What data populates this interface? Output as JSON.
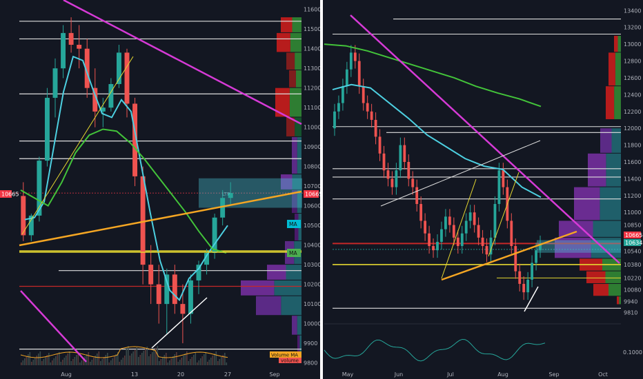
{
  "colors": {
    "background": "#131722",
    "panel_border": "#ffffff",
    "up_candle": "#26a69a",
    "down_candle": "#ef5350",
    "ma_cyan": "#4dd0e1",
    "ma_green": "#43c43a",
    "trend_magenta": "#d63ad6",
    "trend_orange": "#f5a623",
    "support_yellow": "#e6d830",
    "resistance_red": "#c62828",
    "price_label_red": "#f23645",
    "ma_label_cyan": "#00bcd4",
    "ma_label_green": "#4caf50"
  },
  "chart_data": [
    {
      "type": "candlestick",
      "panel": "left",
      "title": "",
      "ylim": [
        9760,
        11620
      ],
      "y_ticks": [
        "11600",
        "11500",
        "11400",
        "11300",
        "11200",
        "11100",
        "11000",
        "10900",
        "10800",
        "10700",
        "10600",
        "10500",
        "10400",
        "10300",
        "10200",
        "10100",
        "10000",
        "9900",
        "9800"
      ],
      "x_ticks": [
        "Aug",
        "13",
        "20",
        "27",
        "Sep"
      ],
      "last_price_label": "10665",
      "ma_badges": [
        "MA",
        "MA"
      ],
      "volume_legend": [
        "Volume MA",
        "volume"
      ],
      "horizontal_levels": [
        11540,
        11450,
        11170,
        10930,
        10840,
        10370,
        10270,
        10190,
        9870
      ],
      "moving_averages": [
        {
          "color": "cyan",
          "values": [
            10530,
            10540,
            10620,
            10900,
            11180,
            11360,
            11340,
            11200,
            11070,
            11050,
            11140,
            11080,
            10820,
            10560,
            10320,
            10170,
            10120,
            10230,
            10280,
            10360,
            10430,
            10500
          ]
        },
        {
          "color": "green",
          "values": [
            10680,
            10640,
            10600,
            10720,
            10870,
            10960,
            10990,
            10980,
            10920,
            10840,
            10750,
            10660,
            10570,
            10470,
            10380,
            10360
          ]
        }
      ],
      "candles": [
        {
          "open": 10650,
          "high": 10720,
          "low": 10420,
          "close": 10450
        },
        {
          "open": 10450,
          "high": 10560,
          "low": 10420,
          "close": 10550
        },
        {
          "open": 10550,
          "high": 10850,
          "low": 10520,
          "close": 10830
        },
        {
          "open": 10830,
          "high": 11200,
          "low": 10800,
          "close": 11150
        },
        {
          "open": 11150,
          "high": 11350,
          "low": 11050,
          "close": 11300
        },
        {
          "open": 11300,
          "high": 11520,
          "low": 11250,
          "close": 11480
        },
        {
          "open": 11480,
          "high": 11560,
          "low": 11380,
          "close": 11420
        },
        {
          "open": 11420,
          "high": 11520,
          "low": 11300,
          "close": 11400
        },
        {
          "open": 11400,
          "high": 11450,
          "low": 11150,
          "close": 11200
        },
        {
          "open": 11200,
          "high": 11300,
          "low": 11000,
          "close": 11080
        },
        {
          "open": 11080,
          "high": 11150,
          "low": 11000,
          "close": 11100
        },
        {
          "open": 11100,
          "high": 11250,
          "low": 11080,
          "close": 11220
        },
        {
          "open": 11220,
          "high": 11420,
          "low": 11200,
          "close": 11380
        },
        {
          "open": 11380,
          "high": 11400,
          "low": 11050,
          "close": 11120
        },
        {
          "open": 11120,
          "high": 11150,
          "low": 10700,
          "close": 10750
        },
        {
          "open": 10750,
          "high": 10800,
          "low": 10200,
          "close": 10300
        },
        {
          "open": 10300,
          "high": 10400,
          "low": 10100,
          "close": 10200
        },
        {
          "open": 10200,
          "high": 10300,
          "low": 10000,
          "close": 10100
        },
        {
          "open": 10100,
          "high": 10280,
          "low": 9950,
          "close": 10250
        },
        {
          "open": 10250,
          "high": 10300,
          "low": 10050,
          "close": 10100
        },
        {
          "open": 10100,
          "high": 10200,
          "low": 9900,
          "close": 10050
        },
        {
          "open": 10050,
          "high": 10250,
          "low": 10000,
          "close": 10220
        },
        {
          "open": 10220,
          "high": 10320,
          "low": 10150,
          "close": 10300
        },
        {
          "open": 10300,
          "high": 10380,
          "low": 10250,
          "close": 10360
        },
        {
          "open": 10360,
          "high": 10560,
          "low": 10330,
          "close": 10540
        },
        {
          "open": 10540,
          "high": 10680,
          "low": 10500,
          "close": 10640
        },
        {
          "open": 10640,
          "high": 10720,
          "low": 10600,
          "close": 10665
        }
      ]
    },
    {
      "type": "candlestick",
      "panel": "right",
      "title": "",
      "ylim": [
        9740,
        13460
      ],
      "y_ticks": [
        "13400",
        "13200",
        "13000",
        "12800",
        "12600",
        "12400",
        "12200",
        "12000",
        "11800",
        "11600",
        "11400",
        "11200",
        "11000",
        "10850",
        "10665",
        "10634",
        "10540",
        "10380",
        "10220",
        "10080",
        "9940",
        "9810"
      ],
      "x_ticks": [
        "May",
        "Jun",
        "Jul",
        "Aug",
        "Sep",
        "Oct"
      ],
      "last_price_label": "10665",
      "last_price_label_2": "10634",
      "oscillator_tick": "0.1000",
      "horizontal_levels": [
        13300,
        13120,
        12020,
        11950,
        11520,
        11420,
        11160,
        10630,
        10380,
        10220,
        9860
      ],
      "moving_averages": [
        {
          "color": "cyan",
          "values": [
            12460,
            12520,
            12480,
            12300,
            12120,
            11920,
            11780,
            11640,
            11550,
            11510,
            11300,
            11180
          ]
        },
        {
          "color": "green",
          "values": [
            13000,
            12980,
            12920,
            12840,
            12760,
            12680,
            12600,
            12500,
            12420,
            12350,
            12260
          ]
        }
      ],
      "closes": [
        12200,
        12300,
        12500,
        12700,
        12900,
        12800,
        12500,
        12300,
        12200,
        12100,
        11900,
        11700,
        11500,
        11400,
        11300,
        11500,
        11800,
        11600,
        11400,
        11300,
        11100,
        10900,
        10750,
        10600,
        10550,
        10650,
        10800,
        10950,
        10850,
        10700,
        10600,
        10750,
        10900,
        11000,
        10850,
        10700,
        10600,
        10500,
        10700,
        11100,
        11500,
        11300,
        10900,
        10600,
        10300,
        10150,
        10050,
        10200,
        10400,
        10550,
        10634
      ]
    }
  ]
}
